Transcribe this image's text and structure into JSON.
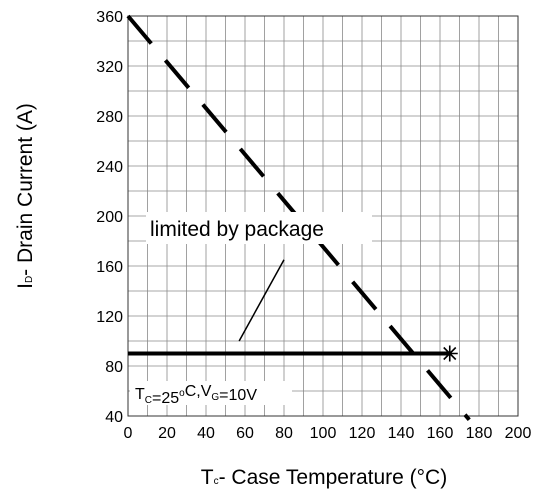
{
  "chart_data": {
    "type": "line",
    "xlabel": {
      "main": "T",
      "sub": "c",
      "rest": "- Case Temperature (°C)"
    },
    "ylabel": {
      "main": "I",
      "sub": "D",
      "rest": "- Drain Current (A)"
    },
    "xlim": [
      0,
      200
    ],
    "ylim": [
      40,
      360
    ],
    "x_ticks": [
      0,
      20,
      40,
      60,
      80,
      100,
      120,
      140,
      160,
      180,
      200
    ],
    "y_ticks": [
      40,
      80,
      120,
      160,
      200,
      240,
      280,
      320,
      360
    ],
    "grid": true,
    "grid_minor_x": 10,
    "grid_minor_y": 20,
    "series": [
      {
        "style": "dashed-thick",
        "x": [
          0,
          175
        ],
        "y": [
          360,
          37
        ]
      },
      {
        "style": "solid-thick",
        "x": [
          0,
          165
        ],
        "y": [
          90,
          90
        ]
      }
    ],
    "annotation": {
      "text": "limited by package",
      "pointer_from": [
        57,
        100
      ],
      "pointer_to": [
        80,
        165
      ]
    },
    "condition": {
      "parts": [
        {
          "text": "T",
          "sub": false
        },
        {
          "text": "C",
          "sub": true
        },
        {
          "text": "=25",
          "sub": false
        },
        {
          "text": "o",
          "sup": true
        },
        {
          "text": "C,V",
          "sub": false
        },
        {
          "text": "G",
          "sub": true
        },
        {
          "text": "=10V",
          "sub": false
        }
      ]
    }
  }
}
